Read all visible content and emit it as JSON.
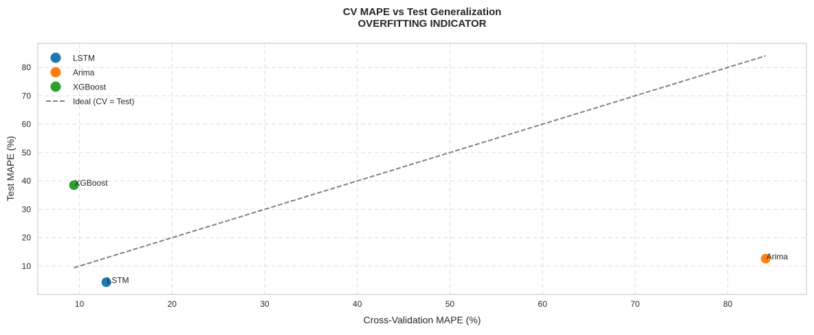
{
  "chart_data": {
    "type": "scatter",
    "title_line1": "CV MAPE vs Test  Generalization",
    "title_line2": "OVERFITTING INDICATOR",
    "xlabel": "Cross-Validation MAPE (%)",
    "ylabel": "Test MAPE (%)",
    "xlim": [
      5.5,
      88.5
    ],
    "ylim": [
      0,
      88.5
    ],
    "xticks": [
      10,
      20,
      30,
      40,
      50,
      60,
      70,
      80
    ],
    "yticks": [
      10,
      20,
      30,
      40,
      50,
      60,
      70,
      80
    ],
    "grid": true,
    "legend_position": "top-left",
    "series": [
      {
        "name": "LSTM",
        "color": "#1f77b4",
        "x": 12.9,
        "y": 4.3,
        "label": "LSTM"
      },
      {
        "name": "Arima",
        "color": "#ff7f0e",
        "x": 84.1,
        "y": 12.6,
        "label": "Arima"
      },
      {
        "name": "XGBoost",
        "color": "#2ca02c",
        "x": 9.4,
        "y": 38.5,
        "label": "XGBoost"
      }
    ],
    "ideal_line": {
      "name": "Ideal (CV = Test)",
      "color": "#808080",
      "from": 9.4,
      "to": 84.1
    }
  }
}
